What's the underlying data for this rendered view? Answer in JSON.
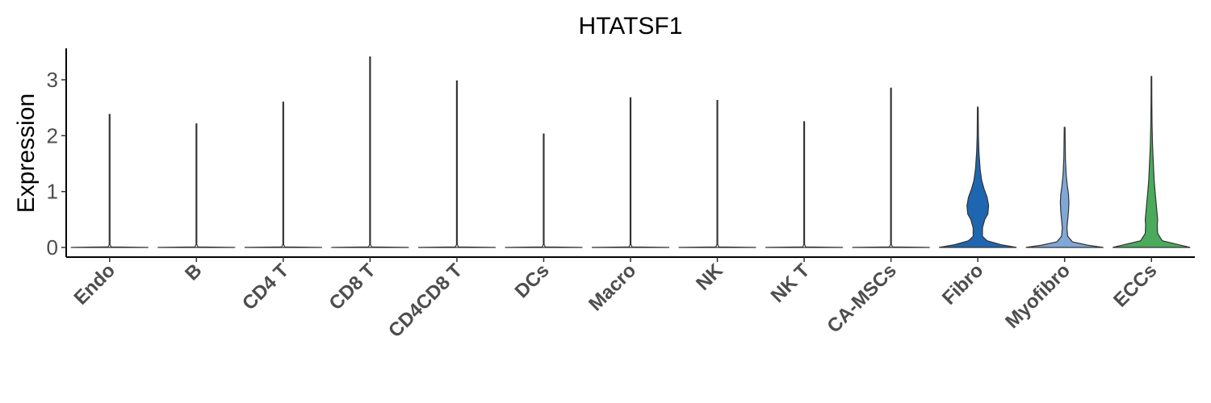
{
  "chart_data": {
    "type": "violin",
    "title": "HTATSF1",
    "xlabel": "",
    "ylabel": "Expression",
    "ylim": [
      -0.15,
      3.55
    ],
    "yticks": [
      0,
      1,
      2,
      3
    ],
    "grid": false,
    "legend": "none",
    "categories": [
      "Endo",
      "B",
      "CD4 T",
      "CD8 T",
      "CD4CD8 T",
      "DCs",
      "Macro",
      "NK",
      "NK T",
      "CA-MSCs",
      "Fibro",
      "Myofibro",
      "ECCs"
    ],
    "max_values": [
      2.38,
      2.21,
      2.6,
      3.41,
      2.98,
      2.03,
      2.68,
      2.63,
      2.25,
      2.85,
      2.51,
      2.15,
      3.06
    ],
    "colors": [
      "#ffffff",
      "#ffffff",
      "#ffffff",
      "#ffffff",
      "#ffffff",
      "#ffffff",
      "#ffffff",
      "#ffffff",
      "#ffffff",
      "#ffffff",
      "#1f66b0",
      "#7fa8d6",
      "#4aab5c"
    ],
    "density_profiles": [
      {
        "y": [
          0,
          0.01,
          0.05,
          2.38
        ],
        "w": [
          0.5,
          0.02,
          0.005,
          0.005
        ]
      },
      {
        "y": [
          0,
          0.01,
          0.05,
          2.21
        ],
        "w": [
          0.5,
          0.02,
          0.005,
          0.005
        ]
      },
      {
        "y": [
          0,
          0.01,
          0.05,
          2.6
        ],
        "w": [
          0.5,
          0.02,
          0.005,
          0.005
        ]
      },
      {
        "y": [
          0,
          0.01,
          0.05,
          3.41
        ],
        "w": [
          0.5,
          0.02,
          0.005,
          0.005
        ]
      },
      {
        "y": [
          0,
          0.01,
          0.05,
          2.98
        ],
        "w": [
          0.5,
          0.02,
          0.005,
          0.005
        ]
      },
      {
        "y": [
          0,
          0.01,
          0.05,
          2.03
        ],
        "w": [
          0.5,
          0.02,
          0.005,
          0.005
        ]
      },
      {
        "y": [
          0,
          0.01,
          0.05,
          2.68
        ],
        "w": [
          0.5,
          0.02,
          0.005,
          0.005
        ]
      },
      {
        "y": [
          0,
          0.01,
          0.05,
          2.63
        ],
        "w": [
          0.5,
          0.02,
          0.005,
          0.005
        ]
      },
      {
        "y": [
          0,
          0.01,
          0.05,
          2.25
        ],
        "w": [
          0.5,
          0.02,
          0.005,
          0.005
        ]
      },
      {
        "y": [
          0,
          0.01,
          0.05,
          2.85
        ],
        "w": [
          0.5,
          0.02,
          0.005,
          0.005
        ]
      },
      {
        "y": [
          0,
          0.05,
          0.12,
          0.2,
          0.35,
          0.5,
          0.6,
          0.75,
          0.9,
          1.05,
          1.2,
          1.4,
          1.7,
          2.0,
          2.51
        ],
        "w": [
          0.5,
          0.3,
          0.12,
          0.06,
          0.06,
          0.09,
          0.13,
          0.14,
          0.12,
          0.08,
          0.05,
          0.03,
          0.015,
          0.008,
          0.005
        ]
      },
      {
        "y": [
          0,
          0.04,
          0.1,
          0.2,
          0.35,
          0.5,
          0.65,
          0.8,
          0.95,
          1.1,
          1.3,
          1.6,
          2.15
        ],
        "w": [
          0.5,
          0.3,
          0.1,
          0.04,
          0.03,
          0.04,
          0.05,
          0.055,
          0.05,
          0.035,
          0.02,
          0.01,
          0.005
        ]
      },
      {
        "y": [
          0,
          0.05,
          0.12,
          0.25,
          0.4,
          0.5,
          0.65,
          0.8,
          0.95,
          1.2,
          1.5,
          1.8,
          2.2,
          2.6,
          3.06
        ],
        "w": [
          0.5,
          0.35,
          0.14,
          0.08,
          0.075,
          0.08,
          0.07,
          0.06,
          0.05,
          0.035,
          0.025,
          0.015,
          0.008,
          0.005,
          0.004
        ]
      }
    ]
  }
}
